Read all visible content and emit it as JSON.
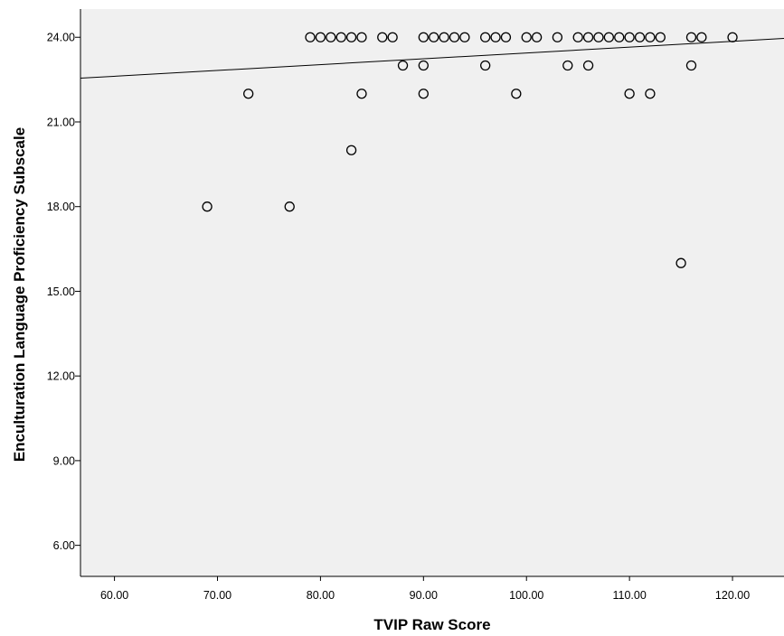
{
  "chart_data": {
    "type": "scatter",
    "title": "",
    "xlabel": "TVIP Raw Score",
    "ylabel": "Enculturation Language Proficiency Subscale",
    "xlim": [
      56.7,
      125
    ],
    "ylim": [
      4.9,
      25
    ],
    "x_ticks": [
      60,
      70,
      80,
      90,
      100,
      110,
      120
    ],
    "x_tick_labels": [
      "60.00",
      "70.00",
      "80.00",
      "90.00",
      "100.00",
      "110.00",
      "120.00"
    ],
    "y_ticks": [
      6,
      9,
      12,
      15,
      18,
      21,
      24
    ],
    "y_tick_labels": [
      "6.00",
      "9.00",
      "12.00",
      "15.00",
      "18.00",
      "21.00",
      "24.00"
    ],
    "grid": false,
    "background": "#f0f0f0",
    "marker_color": "#000000",
    "fit_line": {
      "x": [
        56.7,
        125
      ],
      "y": [
        22.55,
        23.96
      ]
    },
    "points": [
      {
        "x": 79,
        "y": 24
      },
      {
        "x": 80,
        "y": 24
      },
      {
        "x": 81,
        "y": 24
      },
      {
        "x": 82,
        "y": 24
      },
      {
        "x": 83,
        "y": 24
      },
      {
        "x": 84,
        "y": 24
      },
      {
        "x": 86,
        "y": 24
      },
      {
        "x": 87,
        "y": 24
      },
      {
        "x": 90,
        "y": 24
      },
      {
        "x": 91,
        "y": 24
      },
      {
        "x": 92,
        "y": 24
      },
      {
        "x": 93,
        "y": 24
      },
      {
        "x": 94,
        "y": 24
      },
      {
        "x": 96,
        "y": 24
      },
      {
        "x": 97,
        "y": 24
      },
      {
        "x": 98,
        "y": 24
      },
      {
        "x": 100,
        "y": 24
      },
      {
        "x": 101,
        "y": 24
      },
      {
        "x": 103,
        "y": 24
      },
      {
        "x": 105,
        "y": 24
      },
      {
        "x": 106,
        "y": 24
      },
      {
        "x": 107,
        "y": 24
      },
      {
        "x": 108,
        "y": 24
      },
      {
        "x": 109,
        "y": 24
      },
      {
        "x": 110,
        "y": 24
      },
      {
        "x": 111,
        "y": 24
      },
      {
        "x": 112,
        "y": 24
      },
      {
        "x": 113,
        "y": 24
      },
      {
        "x": 116,
        "y": 24
      },
      {
        "x": 117,
        "y": 24
      },
      {
        "x": 120,
        "y": 24
      },
      {
        "x": 88,
        "y": 23
      },
      {
        "x": 90,
        "y": 23
      },
      {
        "x": 96,
        "y": 23
      },
      {
        "x": 104,
        "y": 23
      },
      {
        "x": 106,
        "y": 23
      },
      {
        "x": 116,
        "y": 23
      },
      {
        "x": 73,
        "y": 22
      },
      {
        "x": 84,
        "y": 22
      },
      {
        "x": 90,
        "y": 22
      },
      {
        "x": 99,
        "y": 22
      },
      {
        "x": 110,
        "y": 22
      },
      {
        "x": 112,
        "y": 22
      },
      {
        "x": 83,
        "y": 20
      },
      {
        "x": 69,
        "y": 18
      },
      {
        "x": 77,
        "y": 18
      },
      {
        "x": 115,
        "y": 16
      }
    ]
  }
}
